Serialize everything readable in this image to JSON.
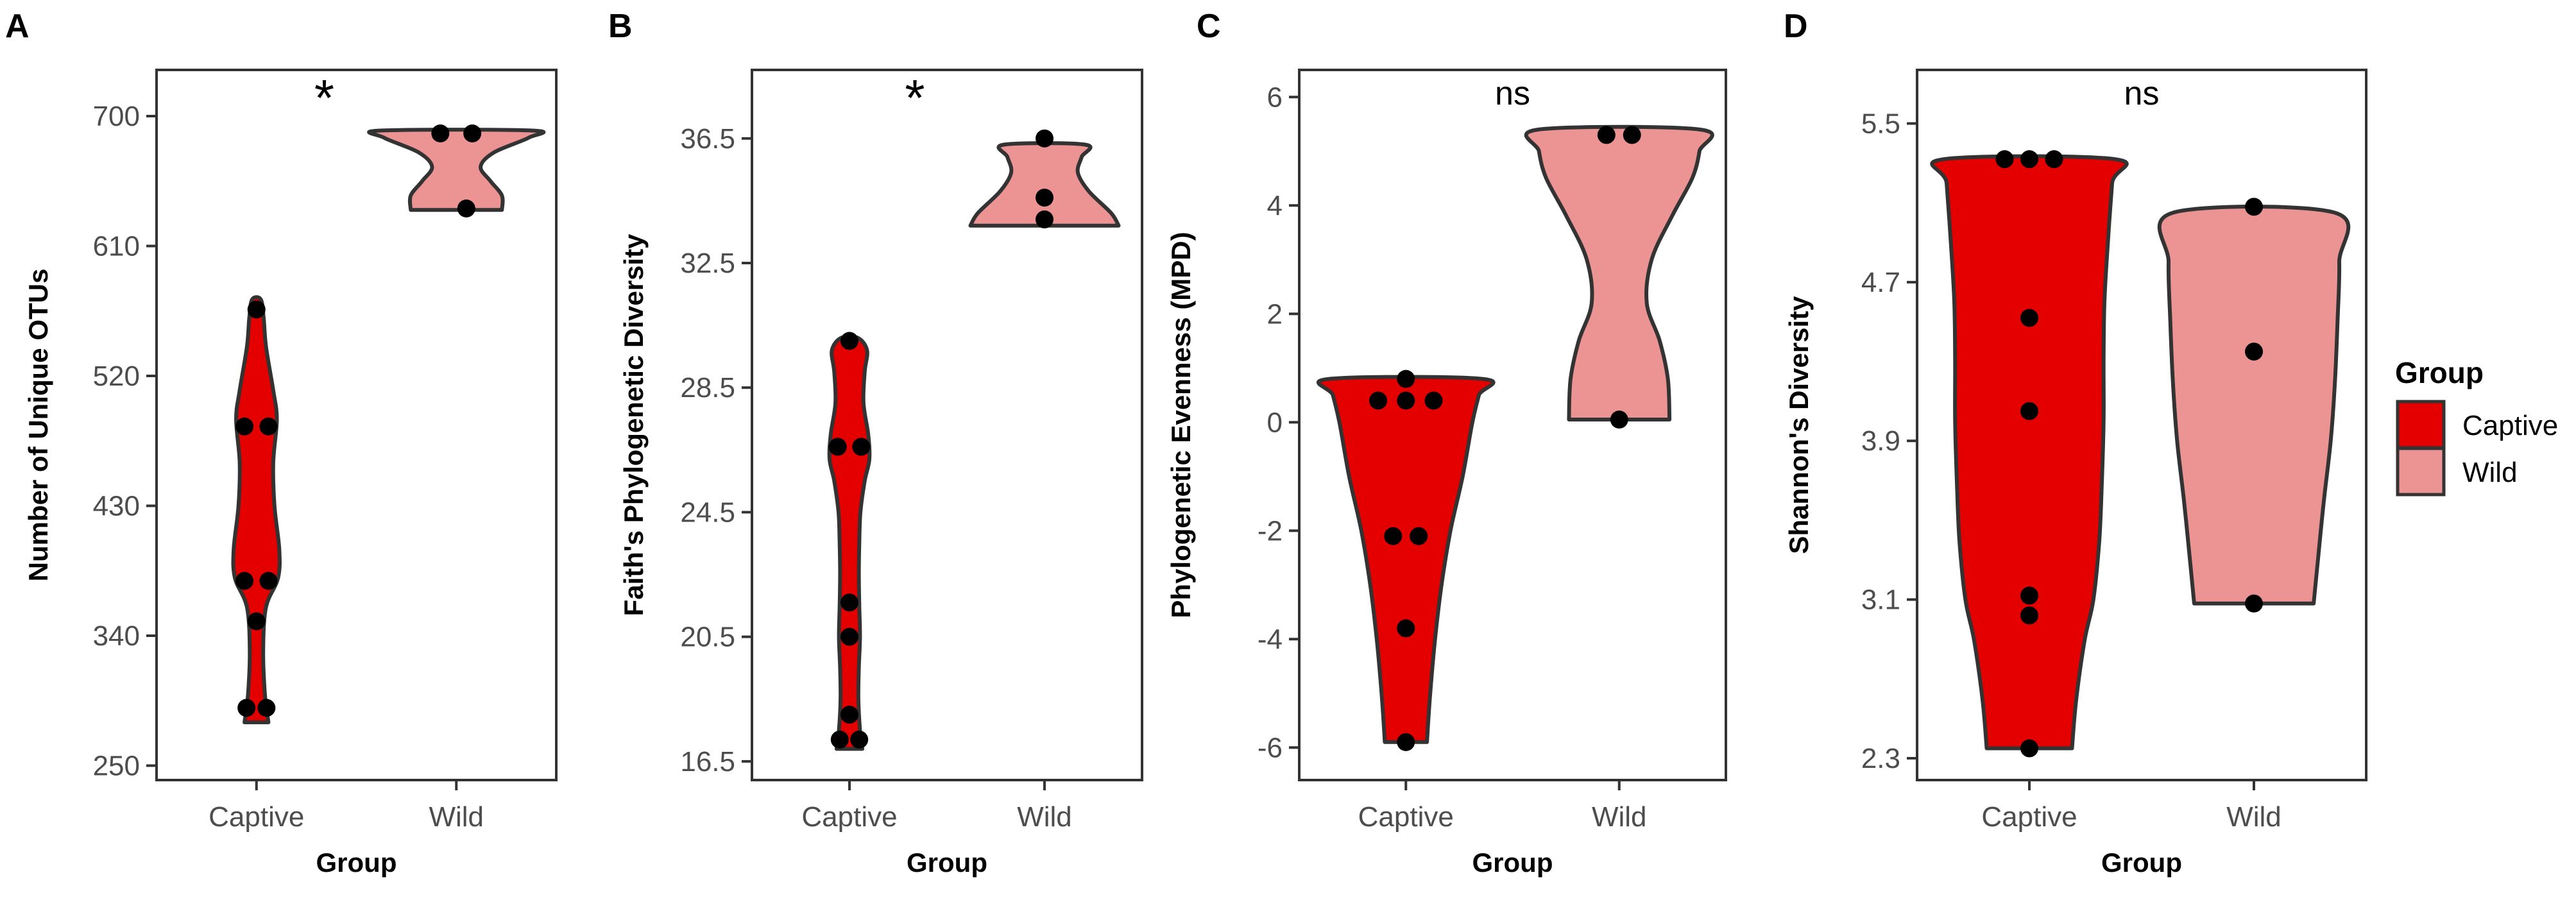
{
  "colors": {
    "Captive": "#e50000",
    "Wild": "#ec9494",
    "outline": "#333333",
    "point": "#000000",
    "frame": "#333333"
  },
  "legend": {
    "title": "Group",
    "items": [
      "Captive",
      "Wild"
    ],
    "placement": "right"
  },
  "chart_data": [
    {
      "panel": "A",
      "type": "violin",
      "xlabel": "Group",
      "ylabel": "Number of Unique OTUs",
      "categories": [
        "Captive",
        "Wild"
      ],
      "yticks": [
        "250",
        "340",
        "430",
        "520",
        "610",
        "700"
      ],
      "ylim": [
        240,
        732
      ],
      "annotation": "*",
      "groups": [
        {
          "name": "Captive",
          "max_half_width": 0.12,
          "profile": [
            [
              280,
              0.5
            ],
            [
              300,
              0.35
            ],
            [
              330,
              0.28
            ],
            [
              360,
              0.4
            ],
            [
              380,
              0.9
            ],
            [
              400,
              0.95
            ],
            [
              430,
              0.75
            ],
            [
              460,
              0.7
            ],
            [
              490,
              0.85
            ],
            [
              510,
              0.7
            ],
            [
              540,
              0.4
            ],
            [
              560,
              0.3
            ],
            [
              573,
              0.18
            ]
          ],
          "points": [
            [
              -0.05,
              290
            ],
            [
              0.05,
              290
            ],
            [
              0.0,
              350
            ],
            [
              -0.06,
              378
            ],
            [
              0.06,
              378
            ],
            [
              -0.06,
              485
            ],
            [
              0.06,
              485
            ],
            [
              0.0,
              566
            ]
          ]
        },
        {
          "name": "Wild",
          "max_half_width": 0.38,
          "profile": [
            [
              635,
              0.6
            ],
            [
              645,
              0.6
            ],
            [
              655,
              0.45
            ],
            [
              665,
              0.32
            ],
            [
              675,
              0.5
            ],
            [
              685,
              0.95
            ],
            [
              690,
              1.0
            ]
          ],
          "points": [
            [
              0.05,
              636
            ],
            [
              -0.08,
              688
            ],
            [
              0.08,
              688
            ]
          ]
        }
      ]
    },
    {
      "panel": "B",
      "type": "violin",
      "xlabel": "Group",
      "ylabel": "Faith's Phylogenetic Diversity",
      "categories": [
        "Captive",
        "Wild"
      ],
      "yticks": [
        "16.5",
        "20.5",
        "24.5",
        "28.5",
        "32.5",
        "36.5"
      ],
      "ylim": [
        15.9,
        38.7
      ],
      "annotation": "*",
      "groups": [
        {
          "name": "Captive",
          "max_half_width": 0.12,
          "profile": [
            [
              16.9,
              0.55
            ],
            [
              17.5,
              0.45
            ],
            [
              18.5,
              0.38
            ],
            [
              19.5,
              0.4
            ],
            [
              20.5,
              0.45
            ],
            [
              21.5,
              0.42
            ],
            [
              22.5,
              0.4
            ],
            [
              23.5,
              0.42
            ],
            [
              24.5,
              0.47
            ],
            [
              25.5,
              0.65
            ],
            [
              26.2,
              0.85
            ],
            [
              27.0,
              0.8
            ],
            [
              28.0,
              0.6
            ],
            [
              29.0,
              0.65
            ],
            [
              29.7,
              0.75
            ],
            [
              30.1,
              0.35
            ]
          ],
          "points": [
            [
              -0.05,
              17.2
            ],
            [
              0.05,
              17.2
            ],
            [
              0.0,
              18.0
            ],
            [
              0.0,
              20.5
            ],
            [
              0.0,
              21.6
            ],
            [
              -0.06,
              26.6
            ],
            [
              0.06,
              26.6
            ],
            [
              0.0,
              30.0
            ]
          ]
        },
        {
          "name": "Wild",
          "max_half_width": 0.38,
          "profile": [
            [
              33.7,
              1.0
            ],
            [
              34.1,
              0.9
            ],
            [
              34.8,
              0.6
            ],
            [
              35.4,
              0.45
            ],
            [
              35.9,
              0.5
            ],
            [
              36.3,
              0.55
            ]
          ],
          "points": [
            [
              0.0,
              33.9
            ],
            [
              0.0,
              34.6
            ],
            [
              0.0,
              36.5
            ]
          ]
        }
      ]
    },
    {
      "panel": "C",
      "type": "violin",
      "xlabel": "Group",
      "ylabel": "Phylogenetic Evenness (MPD)",
      "categories": [
        "Captive",
        "Wild"
      ],
      "yticks": [
        "-6",
        "-4",
        "-2",
        "0",
        "2",
        "4",
        "6"
      ],
      "ylim": [
        -6.6,
        6.5
      ],
      "annotation": "ns",
      "groups": [
        {
          "name": "Captive",
          "max_half_width": 0.38,
          "profile": [
            [
              -5.9,
              0.26
            ],
            [
              -5.0,
              0.3
            ],
            [
              -4.0,
              0.36
            ],
            [
              -3.0,
              0.44
            ],
            [
              -2.0,
              0.55
            ],
            [
              -1.0,
              0.7
            ],
            [
              0.0,
              0.82
            ],
            [
              0.5,
              0.9
            ],
            [
              0.8,
              0.95
            ]
          ],
          "points": [
            [
              -0.13,
              0.4
            ],
            [
              0.0,
              0.4
            ],
            [
              0.13,
              0.4
            ],
            [
              0.0,
              0.8
            ],
            [
              -0.06,
              -2.1
            ],
            [
              0.06,
              -2.1
            ],
            [
              0.0,
              -3.8
            ],
            [
              0.0,
              -5.9
            ]
          ]
        },
        {
          "name": "Wild",
          "max_half_width": 0.38,
          "profile": [
            [
              0.05,
              0.62
            ],
            [
              0.8,
              0.6
            ],
            [
              1.5,
              0.5
            ],
            [
              2.2,
              0.34
            ],
            [
              3.0,
              0.4
            ],
            [
              3.8,
              0.65
            ],
            [
              4.5,
              0.9
            ],
            [
              5.0,
              0.99
            ],
            [
              5.4,
              1.0
            ]
          ],
          "points": [
            [
              0.0,
              0.05
            ],
            [
              -0.06,
              5.3
            ],
            [
              0.06,
              5.3
            ]
          ]
        }
      ]
    },
    {
      "panel": "D",
      "type": "violin",
      "xlabel": "Group",
      "ylabel": "Shannon's Diversity",
      "categories": [
        "Captive",
        "Wild"
      ],
      "yticks": [
        "2.3",
        "3.1",
        "3.9",
        "4.7",
        "5.5"
      ],
      "ylim": [
        2.19,
        5.77
      ],
      "annotation": "ns",
      "groups": [
        {
          "name": "Captive",
          "max_half_width": 0.38,
          "profile": [
            [
              2.35,
              0.5
            ],
            [
              2.6,
              0.55
            ],
            [
              2.9,
              0.65
            ],
            [
              3.1,
              0.75
            ],
            [
              3.4,
              0.82
            ],
            [
              3.7,
              0.85
            ],
            [
              4.0,
              0.87
            ],
            [
              4.3,
              0.87
            ],
            [
              4.6,
              0.88
            ],
            [
              4.9,
              0.92
            ],
            [
              5.2,
              0.97
            ],
            [
              5.32,
              1.0
            ]
          ],
          "points": [
            [
              0.0,
              2.35
            ],
            [
              0.0,
              3.02
            ],
            [
              0.0,
              3.12
            ],
            [
              0.0,
              4.05
            ],
            [
              0.0,
              4.52
            ],
            [
              -0.11,
              5.32
            ],
            [
              0.0,
              5.32
            ],
            [
              0.11,
              5.32
            ]
          ]
        },
        {
          "name": "Wild",
          "max_half_width": 0.38,
          "profile": [
            [
              3.08,
              0.7
            ],
            [
              3.3,
              0.75
            ],
            [
              3.6,
              0.82
            ],
            [
              3.9,
              0.9
            ],
            [
              4.2,
              0.95
            ],
            [
              4.5,
              0.98
            ],
            [
              4.8,
              1.0
            ],
            [
              5.05,
              0.95
            ]
          ],
          "points": [
            [
              0.0,
              3.08
            ],
            [
              0.0,
              4.35
            ],
            [
              0.0,
              5.08
            ]
          ]
        }
      ]
    }
  ]
}
